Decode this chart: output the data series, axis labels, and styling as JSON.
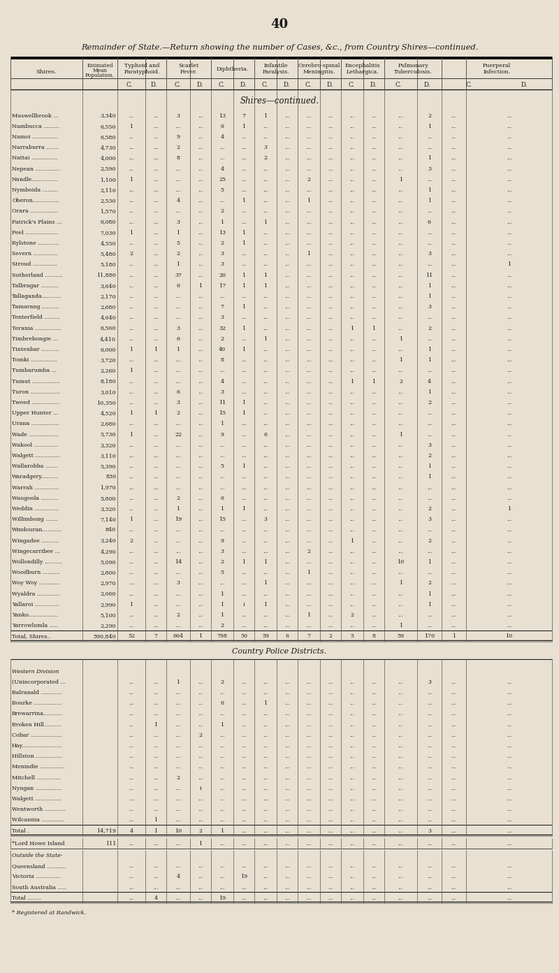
{
  "page_number": "40",
  "title": "Remainder of State.—Return showing the number of Cases, &c., from Country Shires—continued.",
  "bg_color": "#e8e0d0",
  "cat_label_lines": [
    [
      "Typhoid and",
      "Paratyphoid."
    ],
    [
      "Scarlet",
      "Fever."
    ],
    [
      "Diphtheria."
    ],
    [
      "Infantile",
      "Paralysis."
    ],
    [
      "Cerebro-spinal",
      "Meningitis."
    ],
    [
      "Encephalitis",
      "Lethargica."
    ],
    [
      "Pulmonary",
      "Tuberculosis."
    ],
    [
      "Puerperal",
      "Infection."
    ]
  ],
  "shires_section_title": "Shires—continued.",
  "shires_data": [
    [
      "Muswellbrook ...",
      "3,340",
      "...",
      "...",
      "3",
      "...",
      "13",
      "7",
      "1",
      "...",
      "...",
      "...",
      "...",
      "...",
      "...",
      "2",
      "...",
      "..."
    ],
    [
      "Nambucca .........",
      "6,550",
      "1",
      "...",
      "...",
      "...",
      "6",
      "1",
      "...",
      "...",
      "...",
      "...",
      "...",
      "...",
      "...",
      "1",
      "...",
      "..."
    ],
    [
      "Namoi ...............",
      "6,580",
      "...",
      "...",
      "9",
      "...",
      "4",
      "...",
      "...",
      "...",
      "...",
      "...",
      "...",
      "...",
      "...",
      "...",
      "...",
      "..."
    ],
    [
      "Narraburra .......",
      "4,730",
      "...",
      "...",
      "2",
      "...",
      "...",
      "...",
      "3",
      "...",
      "...",
      "...",
      "...",
      "...",
      "...",
      "...",
      "...",
      "..."
    ],
    [
      "Nattai ...............",
      "4,000",
      "...",
      "...",
      "8",
      "...",
      "...",
      "...",
      "2",
      "...",
      "...",
      "...",
      "...",
      "...",
      "...",
      "1",
      "...",
      "..."
    ],
    [
      "Nepean ..............",
      "2,590",
      "...",
      "...",
      "...",
      "...",
      "4",
      "...",
      "...",
      "...",
      "...",
      "...",
      "...",
      "...",
      "...",
      "3",
      "...",
      "..."
    ],
    [
      "Nundle...............",
      "1,100",
      "1",
      "...",
      "...",
      "...",
      "25",
      "...",
      "...",
      "...",
      "2",
      "...",
      "...",
      "...",
      "1",
      "...",
      "...",
      "..."
    ],
    [
      "Nymboida .........",
      "2,110",
      "...",
      "...",
      "...",
      "...",
      "5",
      "...",
      "...",
      "...",
      "...",
      "...",
      "...",
      "...",
      "...",
      "1",
      "...",
      "..."
    ],
    [
      "Oberon...............",
      "2,530",
      "...",
      "...",
      "4",
      "...",
      "...",
      "1",
      "...",
      "...",
      "1",
      "...",
      "...",
      "...",
      "...",
      "1",
      "...",
      "..."
    ],
    [
      "Orara ................",
      "1,570",
      "...",
      "...",
      "...",
      "...",
      "2",
      "...",
      "...",
      "...",
      "...",
      "...",
      "...",
      "...",
      "...",
      "...",
      "...",
      "..."
    ],
    [
      "Patrick's Plains ...",
      "6,080",
      "...",
      "...",
      "3",
      "...",
      "1",
      "...",
      "1",
      "...",
      "...",
      "...",
      "...",
      "...",
      "...",
      "6",
      "...",
      "..."
    ],
    [
      "Peel ...................",
      "7,030",
      "1",
      "...",
      "1",
      "...",
      "13",
      "1",
      "...",
      "...",
      "...",
      "...",
      "...",
      "...",
      "...",
      "...",
      "...",
      "..."
    ],
    [
      "Rylstone ............",
      "4,550",
      "...",
      "...",
      "5",
      "...",
      "2",
      "1",
      "...",
      "...",
      "...",
      "...",
      "...",
      "...",
      "...",
      "...",
      "...",
      "..."
    ],
    [
      "Severn ..............",
      "5,480",
      "2",
      "...",
      "2",
      "...",
      "3",
      "...",
      "...",
      "...",
      "1",
      "...",
      "...",
      "...",
      "...",
      "3",
      "...",
      "..."
    ],
    [
      "Stroud ..............",
      "5,180",
      "...",
      "...",
      "1",
      "...",
      "3",
      "...",
      "...",
      "...",
      "...",
      "...",
      "...",
      "...",
      "...",
      "...",
      "...",
      "1"
    ],
    [
      "Sutherland ..........",
      "11,880",
      "...",
      "...",
      "37",
      "...",
      "20",
      "1",
      "1",
      "...",
      "...",
      "...",
      "...",
      "...",
      "...",
      "11",
      "...",
      "..."
    ],
    [
      "Talbragar ..........",
      "3,640",
      "...",
      "...",
      "6",
      "1",
      "17",
      "1",
      "1",
      "...",
      "...",
      "...",
      "...",
      "...",
      "...",
      "1",
      "...",
      "..."
    ],
    [
      "Tallaganda...........",
      "2,170",
      "...",
      "...",
      "...",
      "...",
      "...",
      "...",
      "...",
      "...",
      "...",
      "...",
      "...",
      "...",
      "...",
      "1",
      "...",
      "..."
    ],
    [
      "Tamarang ..........",
      "2,680",
      "...",
      "...",
      "...",
      "...",
      "7",
      "1",
      "...",
      "...",
      "...",
      "...",
      "...",
      "...",
      "...",
      "3",
      "...",
      "..."
    ],
    [
      "Tenterfield .........",
      "4,640",
      "...",
      "...",
      "...",
      "...",
      "3",
      "...",
      "...",
      "...",
      "...",
      "...",
      "...",
      "...",
      "...",
      "...",
      "...",
      "..."
    ],
    [
      "Terania ...............",
      "6,560",
      "...",
      "...",
      "3",
      "...",
      "32",
      "1",
      "...",
      "...",
      "...",
      "...",
      "1",
      "1",
      "...",
      "2",
      "...",
      "..."
    ],
    [
      "Timbrebongie ...",
      "4,410",
      "...",
      "...",
      "6",
      "...",
      "2",
      "...",
      "1",
      "...",
      "...",
      "...",
      "...",
      "...",
      "1",
      "...",
      "...",
      "..."
    ],
    [
      "Tintenbar ..........",
      "6,000",
      "1",
      "1",
      "1",
      "...",
      "40",
      "1",
      "...",
      "...",
      "...",
      "...",
      "...",
      "...",
      "...",
      "1",
      "...",
      "..."
    ],
    [
      "Tomki ...............",
      "3,720",
      "...",
      "...",
      "...",
      "...",
      "8",
      "...",
      "...",
      "...",
      "...",
      "...",
      "...",
      "...",
      "1",
      "1",
      "...",
      "..."
    ],
    [
      "Tumbarumba ...",
      "2,260",
      "1",
      "...",
      "...",
      "...",
      "...",
      "...",
      "...",
      "...",
      "...",
      "...",
      "...",
      "...",
      "...",
      "...",
      "...",
      "..."
    ],
    [
      "Tumut ................",
      "8,180",
      "...",
      "...",
      "...",
      "...",
      "4",
      "...",
      "...",
      "...",
      "...",
      "...",
      "1",
      "1",
      "2",
      "4",
      "...",
      "..."
    ],
    [
      "Turon .................",
      "3,010",
      "...",
      "...",
      "6",
      "...",
      "3",
      "...",
      "...",
      "...",
      "...",
      "...",
      "...",
      "...",
      "...",
      "1",
      "...",
      "..."
    ],
    [
      "Tweed ................",
      "10,350",
      "...",
      "...",
      "3",
      "...",
      "11",
      "1",
      "...",
      "...",
      "...",
      "...",
      "...",
      "...",
      "...",
      "2",
      "...",
      "..."
    ],
    [
      "Upper Hunter ...",
      "4,520",
      "1",
      "1",
      "2",
      "...",
      "15",
      "1",
      "...",
      "...",
      "...",
      "...",
      "...",
      "...",
      "...",
      "...",
      "...",
      "..."
    ],
    [
      "Urana ................",
      "2,680",
      "...",
      "...",
      "...",
      "...",
      "1",
      "...",
      "...",
      "...",
      "...",
      "...",
      "...",
      "...",
      "...",
      "...",
      "...",
      "..."
    ],
    [
      "Wade .................",
      "5,730",
      "1",
      "...",
      "22",
      "...",
      "9",
      "...",
      "6",
      "...",
      "...",
      "...",
      "...",
      "...",
      "1",
      "...",
      "...",
      "..."
    ],
    [
      "Wakool ..............",
      "3,320",
      "...",
      "...",
      "...",
      "...",
      "...",
      "...",
      "...",
      "...",
      "...",
      "...",
      "...",
      "...",
      "...",
      "3",
      "...",
      "..."
    ],
    [
      "Walgett ..............",
      "3,110",
      "...",
      "...",
      "...",
      "...",
      "...",
      "...",
      "...",
      "...",
      "...",
      "...",
      "...",
      "...",
      "...",
      "2",
      "...",
      "..."
    ],
    [
      "Wallarobha .......",
      "5,390",
      "...",
      "...",
      "...",
      "...",
      "5",
      "1",
      "...",
      "...",
      "...",
      "...",
      "...",
      "...",
      "...",
      "1",
      "...",
      "..."
    ],
    [
      "Waradgery..........",
      "830",
      "...",
      "...",
      "...",
      "...",
      "...",
      "...",
      "...",
      "...",
      "...",
      "...",
      "...",
      "...",
      "...",
      "1",
      "...",
      "..."
    ],
    [
      "Warrah ..............",
      "1,970",
      "...",
      "...",
      "...",
      "...",
      "...",
      "...",
      "...",
      "...",
      "...",
      "...",
      "...",
      "...",
      "...",
      "...",
      "...",
      "..."
    ],
    [
      "Waugoola ..........",
      "5,800",
      "...",
      "...",
      "2",
      "...",
      "6",
      "...",
      "...",
      "...",
      "...",
      "...",
      "...",
      "...",
      "...",
      "...",
      "...",
      "..."
    ],
    [
      "Weddin ..............",
      "3,320",
      "...",
      "...",
      "1",
      "...",
      "1",
      "1",
      "...",
      "...",
      "...",
      "...",
      "...",
      "...",
      "...",
      "2",
      "...",
      "1"
    ],
    [
      "Willimbong .......",
      "7,140",
      "1",
      "...",
      "19",
      "...",
      "15",
      "...",
      "3",
      "...",
      "...",
      "...",
      "...",
      "...",
      "...",
      "3",
      "...",
      "..."
    ],
    [
      "Windouran...........",
      "840",
      "...",
      "...",
      "...",
      "...",
      "...",
      "...",
      "...",
      "...",
      "...",
      "...",
      "...",
      "...",
      "...",
      "...",
      "...",
      "..."
    ],
    [
      "Wingadee ..........",
      "3,240",
      "2",
      "...",
      "...",
      "...",
      "9",
      "...",
      "...",
      "...",
      "...",
      "...",
      "1",
      "...",
      "...",
      "2",
      "...",
      "..."
    ],
    [
      "Wingecarribee ...",
      "4,290",
      "...",
      "...",
      "...",
      "...",
      "3",
      "...",
      "...",
      "...",
      "2",
      "...",
      "...",
      "...",
      "...",
      "...",
      "...",
      "..."
    ],
    [
      "Wollondilly ..........",
      "5,090",
      "...",
      "...",
      "14",
      "...",
      "2",
      "1",
      "1",
      "...",
      "...",
      "...",
      "...",
      "...",
      "10",
      "1",
      "...",
      "..."
    ],
    [
      "Woodburn ..........",
      "2,800",
      "...",
      "...",
      "...",
      "...",
      "5",
      "...",
      "...",
      "...",
      "1",
      "...",
      "...",
      "...",
      "...",
      "...",
      "...",
      "..."
    ],
    [
      "Woy Woy ............",
      "2,970",
      "...",
      "...",
      "3",
      "...",
      "...",
      "...",
      "1",
      "...",
      "...",
      "...",
      "...",
      "...",
      "1",
      "2",
      "...",
      "..."
    ],
    [
      "Wyaldra .............",
      "2,060",
      "...",
      "...",
      "...",
      "...",
      "1",
      "...",
      "...",
      "...",
      "...",
      "...",
      "...",
      "...",
      "...",
      "1",
      "...",
      "..."
    ],
    [
      "Yallaroi ..............",
      "2,990",
      "1",
      "...",
      "...",
      "...",
      "1",
      "i",
      "1",
      "...",
      "...",
      "...",
      "...",
      "...",
      "...",
      "1",
      "...",
      "..."
    ],
    [
      "Yanko.................",
      "5,100",
      "...",
      "...",
      "2",
      "...",
      "1",
      "...",
      "...",
      "...",
      "1",
      "...",
      "2",
      "...",
      "...",
      "...",
      "...",
      "..."
    ],
    [
      "Yarrowlumla .....",
      "2,290",
      "...",
      "...",
      "...",
      "...",
      "2",
      "...",
      "...",
      "...",
      "...",
      "...",
      "...",
      "...",
      "1",
      "...",
      "...",
      "..."
    ],
    [
      "Total, Shires..",
      "590,840",
      "52",
      "7",
      "664",
      "1",
      "798",
      "50",
      "59",
      "6",
      "7",
      "2",
      "5",
      "8",
      "59",
      "170",
      "1",
      "10"
    ]
  ],
  "police_section_title": "Country Police Districts.",
  "police_data": [
    [
      "Western Division",
      "",
      "",
      "",
      "",
      "",
      "",
      "",
      "",
      "",
      "",
      "",
      "",
      "",
      "",
      "",
      "",
      ""
    ],
    [
      "(Unincorporated ...",
      "",
      "...",
      "...",
      "1",
      "...",
      "2",
      "...",
      "...",
      "...",
      "...",
      "...",
      "...",
      "...",
      "...",
      "3",
      "...",
      "..."
    ],
    [
      "Balranald ............",
      "",
      "...",
      "...",
      "...",
      "...",
      "...",
      "...",
      "...",
      "...",
      "...",
      "...",
      "...",
      "...",
      "...",
      "...",
      "...",
      "..."
    ],
    [
      "Bourke ................",
      "",
      "...",
      "...",
      "...",
      "...",
      "6",
      "...",
      "1",
      "...",
      "...",
      "...",
      "...",
      "...",
      "...",
      "...",
      "...",
      "..."
    ],
    [
      "Brewarrina...........",
      "",
      "...",
      "...",
      "...",
      "...",
      "...",
      "...",
      "...",
      "...",
      "...",
      "...",
      "...",
      "...",
      "...",
      "...",
      "...",
      "..."
    ],
    [
      "Broken Hill..........",
      "",
      "...",
      "1",
      "...",
      "...",
      "1",
      "...",
      "...",
      "...",
      "...",
      "...",
      "...",
      "...",
      "...",
      "...",
      "...",
      "..."
    ],
    [
      "Cobar ..................",
      "",
      "...",
      "...",
      "...",
      "2",
      "...",
      "...",
      "...",
      "...",
      "...",
      "...",
      "...",
      "...",
      "...",
      "...",
      "...",
      "..."
    ],
    [
      "Hay.......................",
      "",
      "...",
      "...",
      "...",
      "...",
      "...",
      "...",
      "...",
      "...",
      "...",
      "...",
      "...",
      "...",
      "...",
      "...",
      "...",
      "..."
    ],
    [
      "Hillston ...............",
      "",
      "...",
      "...",
      "...",
      "...",
      "...",
      "...",
      "...",
      "...",
      "...",
      "...",
      "...",
      "...",
      "...",
      "...",
      "...",
      "..."
    ],
    [
      "Menindie ..............",
      "",
      "...",
      "...",
      "...",
      "...",
      "...",
      "...",
      "...",
      "...",
      "...",
      "...",
      "...",
      "...",
      "...",
      "...",
      "...",
      "..."
    ],
    [
      "Mitchell ..............",
      "",
      "...",
      "...",
      "2",
      "...",
      "...",
      "...",
      "...",
      "...",
      "...",
      "...",
      "...",
      "...",
      "...",
      "...",
      "...",
      "..."
    ],
    [
      "Nyngan ...............",
      "",
      "...",
      "...",
      "...",
      "i",
      "...",
      "...",
      "...",
      "...",
      "...",
      "...",
      "...",
      "...",
      "...",
      "...",
      "...",
      "..."
    ],
    [
      "Walgett ...............",
      "",
      "...",
      "...",
      "...",
      "...",
      "...",
      "...",
      "...",
      "...",
      "...",
      "...",
      "...",
      "...",
      "...",
      "...",
      "...",
      "..."
    ],
    [
      "Wentworth ............",
      "",
      "...",
      "...",
      "...",
      "...",
      "...",
      "...",
      "...",
      "...",
      "...",
      "...",
      "...",
      "...",
      "...",
      "...",
      "...",
      "..."
    ],
    [
      "Wilcannia .............",
      "",
      "...",
      "1",
      "...",
      "...",
      "...",
      "...",
      "...",
      "...",
      "...",
      "...",
      "...",
      "...",
      "...",
      "...",
      "...",
      "..."
    ],
    [
      "Total .",
      "14,719",
      "4",
      "1",
      "10",
      "2",
      "1",
      "...",
      "...",
      "...",
      "...",
      "...",
      "...",
      "...",
      "...",
      "3",
      "...",
      "..."
    ]
  ],
  "lord_howe_data": [
    [
      "*Lord Howe Island",
      "111",
      "...",
      "...",
      "...",
      "1",
      "...",
      "...",
      "...",
      "...",
      "...",
      "...",
      "...",
      "...",
      "...",
      "...",
      "...",
      "..."
    ]
  ],
  "outside_state_data": [
    [
      "Outside the State-",
      "",
      "",
      "",
      "",
      "",
      "",
      "",
      "",
      "",
      "",
      "",
      "",
      "",
      "",
      "",
      "",
      ""
    ],
    [
      "Queensland ...........",
      "",
      "...",
      "...",
      "...",
      "...",
      "...",
      "...",
      "...",
      "...",
      "...",
      "...",
      "...",
      "...",
      "...",
      "...",
      "...",
      "..."
    ],
    [
      "Victoria ..............",
      "",
      "...",
      "...",
      "4",
      "...",
      "...",
      "19",
      "...",
      "...",
      "...",
      "...",
      "...",
      "...",
      "...",
      "...",
      "...",
      "..."
    ],
    [
      "South Australia .....",
      "",
      "...",
      "...",
      "...",
      "...",
      "...",
      "...",
      "...",
      "...",
      "...",
      "...",
      "...",
      "...",
      "...",
      "...",
      "...",
      "..."
    ],
    [
      "Total ........",
      "",
      "...",
      "4",
      "...",
      "...",
      "19",
      "...",
      "...",
      "...",
      "...",
      "...",
      "...",
      "...",
      "...",
      "...",
      "...",
      "..."
    ]
  ],
  "footnote": "* Registered at Randwick."
}
